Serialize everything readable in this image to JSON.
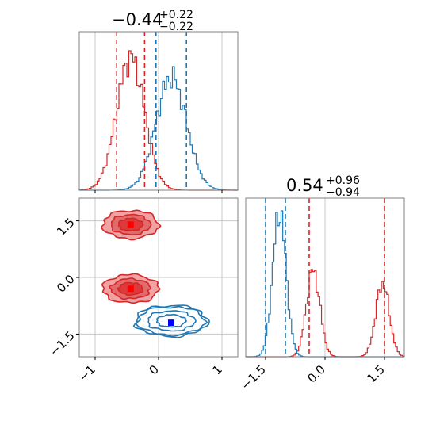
{
  "colors": {
    "red": "#d62728",
    "blue": "#1f77b4",
    "red_marker": "#ff0000",
    "blue_marker": "#0000ff",
    "red_fill_light": "#f1a3a4",
    "red_fill_dark": "#dd3a3b",
    "grid": "#c8c8c8",
    "axes": "#808080"
  },
  "panels": {
    "top_left": {
      "title": {
        "value": "−0.44",
        "sup": "+0.22",
        "sub": "−0.22"
      }
    },
    "bottom_right": {
      "title": {
        "value": "0.54",
        "sup": "+0.96",
        "sub": "−0.94"
      }
    }
  },
  "chart_data": [
    {
      "type": "area",
      "panel": "top-left marginal histogram (parameter 1)",
      "xlim": [
        -1.25,
        1.25
      ],
      "grid": true,
      "series": [
        {
          "color": "red",
          "mean": -0.44,
          "std": 0.22,
          "quantiles": [
            -0.66,
            -0.22
          ]
        },
        {
          "color": "blue",
          "mean": 0.2,
          "std": 0.24,
          "quantiles": [
            -0.04,
            0.44
          ]
        }
      ]
    },
    {
      "type": "area",
      "panel": "bottom-right marginal histogram (parameter 2)",
      "xlim": [
        -2.0,
        2.0
      ],
      "xticks": [
        -1.5,
        0.0,
        1.5
      ],
      "xtick_labels": [
        "−1.5",
        "0.0",
        "1.5"
      ],
      "grid": true,
      "series": [
        {
          "color": "red",
          "modes": [
            {
              "center": -0.3,
              "std": 0.17,
              "weight": 1.0
            },
            {
              "center": 1.45,
              "std": 0.17,
              "weight": 0.85
            }
          ],
          "quantiles": [
            -0.4,
            1.5
          ]
        },
        {
          "color": "blue",
          "modes": [
            {
              "center": -1.15,
              "std": 0.17,
              "weight": 1.0
            }
          ],
          "quantiles": [
            -1.5,
            -1.0
          ]
        }
      ]
    },
    {
      "type": "scatter",
      "panel": "bottom-left 2D density contours",
      "xlim": [
        -1.25,
        1.25
      ],
      "ylim": [
        -2.1,
        2.1
      ],
      "xticks": [
        -1,
        0,
        1
      ],
      "xtick_labels": [
        "−1",
        "0",
        "1"
      ],
      "yticks": [
        -1.5,
        0.0,
        1.5
      ],
      "ytick_labels": [
        "−1.5",
        "0.0",
        "1.5"
      ],
      "grid": true,
      "series": [
        {
          "color": "red",
          "filled": true,
          "clusters": [
            {
              "x": -0.44,
              "y": 1.4,
              "sx": 0.2,
              "sy": 0.17
            },
            {
              "x": -0.44,
              "y": -0.3,
              "sx": 0.2,
              "sy": 0.17
            }
          ],
          "markers": [
            {
              "x": -0.44,
              "y": 1.4
            },
            {
              "x": -0.44,
              "y": -0.3
            }
          ]
        },
        {
          "color": "blue",
          "filled": false,
          "clusters": [
            {
              "x": 0.2,
              "y": -1.15,
              "sx": 0.24,
              "sy": 0.17
            }
          ],
          "markers": [
            {
              "x": 0.2,
              "y": -1.2
            }
          ]
        }
      ]
    }
  ]
}
